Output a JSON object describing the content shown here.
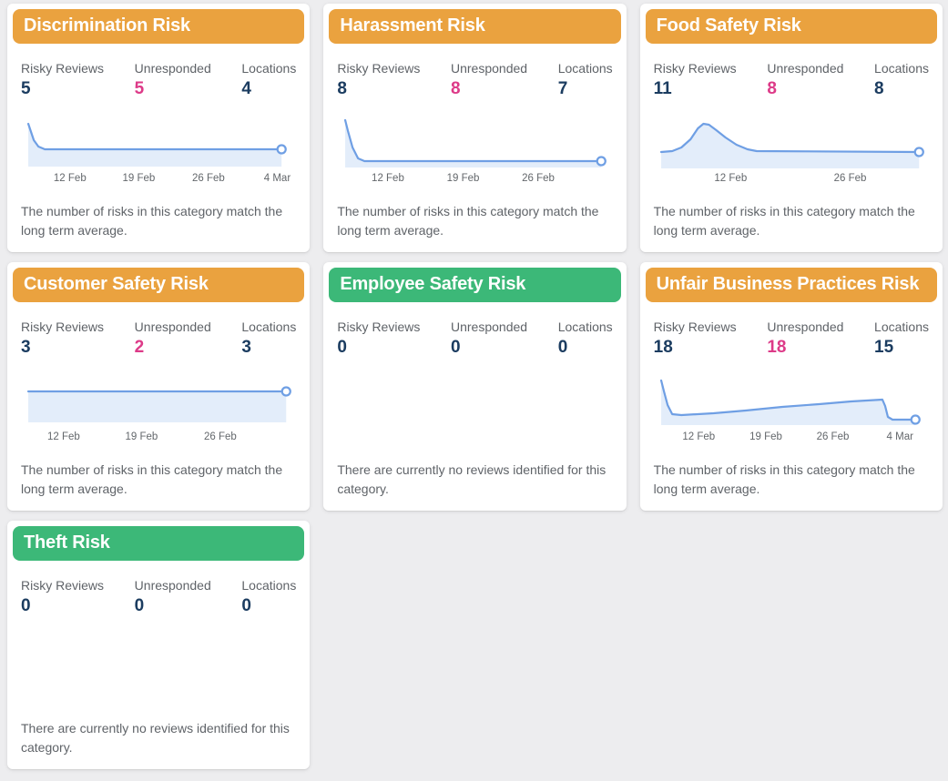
{
  "colors": {
    "header_orange": "#EAA23F",
    "header_green": "#3CB878",
    "stat_navy": "#1B3C60",
    "stat_pink": "#DD3A88",
    "label_gray": "#5F6368",
    "tick_gray": "#63676B",
    "line_blue": "#6F9FE4",
    "fill_blue": "#E3EDFA",
    "card_bg": "#FFFFFF",
    "page_bg": "#EDEDEF"
  },
  "stat_labels": {
    "risky_reviews": "Risky Reviews",
    "unresponded": "Unresponded",
    "locations": "Locations"
  },
  "cards": [
    {
      "title": "Discrimination Risk",
      "header_color": "orange",
      "stats": {
        "risky_reviews": "5",
        "unresponded": "5",
        "locations": "4"
      },
      "unresponded_pink": true,
      "description": "The number of risks in this category match the long term average.",
      "chart": {
        "type": "area",
        "line_points": [
          [
            8,
            6
          ],
          [
            10,
            12
          ],
          [
            14,
            24
          ],
          [
            19,
            31
          ],
          [
            26,
            34
          ],
          [
            40,
            34
          ],
          [
            284,
            34
          ]
        ],
        "fill_base": 53,
        "end_marker": true,
        "ticks": [
          {
            "label": "12 Feb",
            "x_pct": 17.8
          },
          {
            "label": "19 Feb",
            "x_pct": 42.8
          },
          {
            "label": "26 Feb",
            "x_pct": 68.1
          },
          {
            "label": "4 Mar",
            "x_pct": 93.1
          }
        ]
      }
    },
    {
      "title": "Harassment Risk",
      "header_color": "orange",
      "stats": {
        "risky_reviews": "8",
        "unresponded": "8",
        "locations": "7"
      },
      "unresponded_pink": true,
      "description": "The number of risks in this category match the long term average.",
      "chart": {
        "type": "area",
        "line_points": [
          [
            9,
            2
          ],
          [
            12,
            14
          ],
          [
            17,
            32
          ],
          [
            23,
            44
          ],
          [
            30,
            47
          ],
          [
            288,
            47
          ]
        ],
        "fill_base": 54,
        "end_marker": true,
        "ticks": [
          {
            "label": "12 Feb",
            "x_pct": 18.4
          },
          {
            "label": "19 Feb",
            "x_pct": 45.7
          },
          {
            "label": "26 Feb",
            "x_pct": 73.0
          }
        ]
      }
    },
    {
      "title": "Food Safety Risk",
      "header_color": "orange",
      "stats": {
        "risky_reviews": "11",
        "unresponded": "8",
        "locations": "8"
      },
      "unresponded_pink": true,
      "description": "The number of risks in this category match the long term average.",
      "chart": {
        "type": "area",
        "line_points": [
          [
            8,
            37
          ],
          [
            20,
            36
          ],
          [
            30,
            32
          ],
          [
            40,
            23
          ],
          [
            48,
            11
          ],
          [
            54,
            6
          ],
          [
            60,
            7
          ],
          [
            68,
            13
          ],
          [
            78,
            21
          ],
          [
            90,
            29
          ],
          [
            102,
            34
          ],
          [
            112,
            36
          ],
          [
            289,
            37
          ]
        ],
        "fill_base": 55,
        "end_marker": true,
        "ticks": [
          {
            "label": "12 Feb",
            "x_pct": 28.0
          },
          {
            "label": "26 Feb",
            "x_pct": 71.4
          }
        ]
      }
    },
    {
      "title": "Customer Safety Risk",
      "header_color": "orange",
      "stats": {
        "risky_reviews": "3",
        "unresponded": "2",
        "locations": "3"
      },
      "unresponded_pink": true,
      "description": "The number of risks in this category match the long term average.",
      "chart": {
        "type": "area",
        "line_points": [
          [
            8,
            16
          ],
          [
            289,
            16
          ]
        ],
        "fill_base": 50,
        "end_marker": true,
        "ticks": [
          {
            "label": "12 Feb",
            "x_pct": 15.5
          },
          {
            "label": "19 Feb",
            "x_pct": 43.8
          },
          {
            "label": "26 Feb",
            "x_pct": 72.4
          }
        ]
      }
    },
    {
      "title": "Employee Safety Risk",
      "header_color": "green",
      "stats": {
        "risky_reviews": "0",
        "unresponded": "0",
        "locations": "0"
      },
      "unresponded_pink": false,
      "description": "There are currently no reviews identified for this category.",
      "chart": null
    },
    {
      "title": "Unfair Business Practices Risk",
      "header_color": "orange",
      "stats": {
        "risky_reviews": "18",
        "unresponded": "18",
        "locations": "15"
      },
      "unresponded_pink": true,
      "description": "The number of risks in this category match the long term average.",
      "chart": {
        "type": "area",
        "line_points": [
          [
            8,
            4
          ],
          [
            11,
            16
          ],
          [
            15,
            31
          ],
          [
            20,
            41
          ],
          [
            30,
            42
          ],
          [
            65,
            40
          ],
          [
            100,
            37
          ],
          [
            140,
            33
          ],
          [
            180,
            30
          ],
          [
            215,
            27
          ],
          [
            249,
            25
          ],
          [
            252,
            32
          ],
          [
            255,
            44
          ],
          [
            260,
            47
          ],
          [
            285,
            47
          ]
        ],
        "fill_base": 53,
        "end_marker": true,
        "ticks": [
          {
            "label": "12 Feb",
            "x_pct": 16.4
          },
          {
            "label": "19 Feb",
            "x_pct": 40.8
          },
          {
            "label": "26 Feb",
            "x_pct": 65.1
          },
          {
            "label": "4 Mar",
            "x_pct": 89.5
          }
        ]
      }
    },
    {
      "title": "Theft Risk",
      "header_color": "green",
      "stats": {
        "risky_reviews": "0",
        "unresponded": "0",
        "locations": "0"
      },
      "unresponded_pink": false,
      "description": "There are currently no reviews identified for this category.",
      "chart": null
    }
  ]
}
